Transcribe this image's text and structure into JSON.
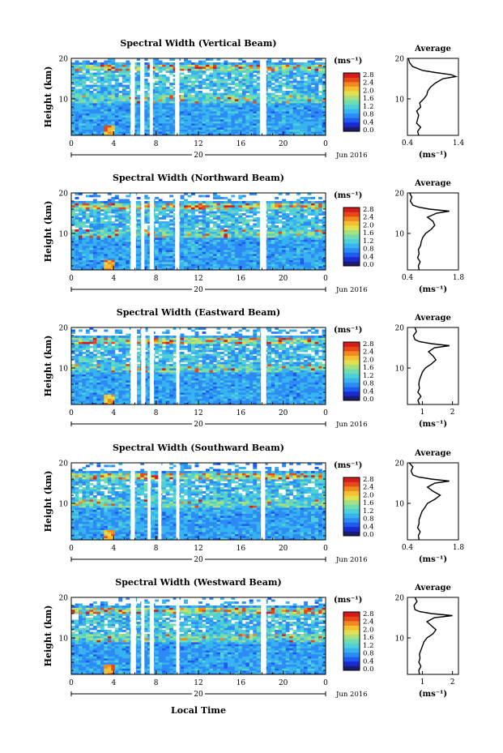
{
  "figure": {
    "xlabel": "Local Time",
    "date_label": "20",
    "month_label": "Jun 2016",
    "unit_label": "(ms⁻¹)",
    "avg_title": "Average",
    "avg_xlabel": "(ms⁻¹)",
    "ylabel": "Height (km)"
  },
  "colors": {
    "colormap": [
      "#1c1c6e",
      "#1a2ad0",
      "#1e5cf0",
      "#2d8bf5",
      "#37b4f0",
      "#4fd0d8",
      "#70dcb0",
      "#a8e080",
      "#e0e050",
      "#f5c030",
      "#f08a20",
      "#e84818",
      "#d41a1a"
    ],
    "white_gap": "#ffffff"
  },
  "chart_data": [
    {
      "type": "heatmap",
      "title": "Spectral Width (Vertical Beam)",
      "xlabel": "Local Time",
      "ylabel": "Height (km)",
      "xticks": [
        "0",
        "4",
        "8",
        "12",
        "16",
        "20",
        "0"
      ],
      "yticks": [
        "10",
        "20"
      ],
      "colorbar_ticks": [
        "0.0",
        "0.4",
        "0.8",
        "1.2",
        "1.6",
        "2.0",
        "2.4",
        "2.8"
      ],
      "gaps_hours": [
        [
          5.6,
          6.0
        ],
        [
          6.5,
          6.9
        ],
        [
          7.4,
          7.7
        ],
        [
          9.8,
          10.2
        ],
        [
          17.8,
          18.4
        ]
      ],
      "features": {
        "top_band_km": [
          17,
          18.5
        ]
      },
      "average_profile": {
        "xticks": [
          "0.4",
          "1.4"
        ],
        "xlim": [
          0.4,
          1.4
        ],
        "ylim": [
          1,
          20
        ],
        "heights": [
          1,
          2,
          3,
          4,
          5,
          6,
          7,
          8,
          9,
          10,
          11,
          12,
          13,
          14,
          15,
          15.5,
          16,
          16.5,
          17,
          18,
          19,
          20
        ],
        "values": [
          0.62,
          0.6,
          0.66,
          0.58,
          0.6,
          0.62,
          0.58,
          0.66,
          0.64,
          0.72,
          0.78,
          0.8,
          0.86,
          0.96,
          1.1,
          1.35,
          1.25,
          0.95,
          0.7,
          0.5,
          0.44,
          0.42
        ]
      }
    },
    {
      "type": "heatmap",
      "title": "Spectral Width (Northward Beam)",
      "xlabel": "Local Time",
      "ylabel": "Height (km)",
      "xticks": [
        "0",
        "4",
        "8",
        "12",
        "16",
        "20",
        "0"
      ],
      "yticks": [
        "10",
        "20"
      ],
      "colorbar_ticks": [
        "0.0",
        "0.4",
        "0.8",
        "1.2",
        "1.6",
        "2.0",
        "2.4",
        "2.8"
      ],
      "gaps_hours": [
        [
          5.6,
          6.1
        ],
        [
          6.6,
          6.9
        ],
        [
          7.4,
          7.8
        ],
        [
          9.8,
          10.2
        ],
        [
          17.8,
          18.4
        ]
      ],
      "features": {
        "top_band_km": [
          16,
          17.5
        ]
      },
      "average_profile": {
        "xticks": [
          "0.4",
          "1.8"
        ],
        "xlim": [
          0.4,
          1.8
        ],
        "ylim": [
          1,
          20
        ],
        "heights": [
          1,
          2,
          3,
          4,
          5,
          6,
          7,
          8,
          9,
          10,
          11,
          12,
          13,
          14,
          15,
          15.5,
          16,
          16.5,
          17,
          18,
          19,
          20
        ],
        "values": [
          0.72,
          0.7,
          0.75,
          0.68,
          0.72,
          0.7,
          0.76,
          0.78,
          0.82,
          0.9,
          1.05,
          1.15,
          1.1,
          0.95,
          1.2,
          1.55,
          1.0,
          0.7,
          0.55,
          0.48,
          0.52,
          0.46
        ]
      }
    },
    {
      "type": "heatmap",
      "title": "Spectral Width (Eastward Beam)",
      "xlabel": "Local Time",
      "ylabel": "Height (km)",
      "xticks": [
        "0",
        "4",
        "8",
        "12",
        "16",
        "20",
        "0"
      ],
      "yticks": [
        "10",
        "20"
      ],
      "colorbar_ticks": [
        "0.0",
        "0.4",
        "0.8",
        "1.2",
        "1.6",
        "2.0",
        "2.4",
        "2.8"
      ],
      "gaps_hours": [
        [
          5.6,
          6.2
        ],
        [
          6.6,
          7.0
        ],
        [
          7.4,
          7.8
        ],
        [
          9.9,
          10.2
        ],
        [
          17.9,
          18.4
        ]
      ],
      "features": {
        "top_band_km": [
          16,
          17.5
        ]
      },
      "average_profile": {
        "xticks": [
          "1",
          "2"
        ],
        "xlim": [
          0.5,
          2.2
        ],
        "ylim": [
          1,
          20
        ],
        "heights": [
          1,
          2,
          3,
          4,
          5,
          6,
          7,
          8,
          9,
          10,
          11,
          12,
          13,
          14,
          15,
          15.5,
          16,
          16.5,
          17,
          18,
          19,
          20
        ],
        "values": [
          0.9,
          0.85,
          0.95,
          0.85,
          0.9,
          0.88,
          0.9,
          0.95,
          1.0,
          1.1,
          1.3,
          1.45,
          1.35,
          1.2,
          1.4,
          1.9,
          1.3,
          0.9,
          0.75,
          0.7,
          0.8,
          0.75
        ]
      }
    },
    {
      "type": "heatmap",
      "title": "Spectral Width (Southward Beam)",
      "xlabel": "Local Time",
      "ylabel": "Height (km)",
      "xticks": [
        "0",
        "4",
        "8",
        "12",
        "16",
        "20",
        "0"
      ],
      "yticks": [
        "10",
        "20"
      ],
      "colorbar_ticks": [
        "0.0",
        "0.4",
        "0.8",
        "1.2",
        "1.6",
        "2.0",
        "2.4",
        "2.8"
      ],
      "gaps_hours": [
        [
          5.6,
          6.0
        ],
        [
          7.2,
          7.5
        ],
        [
          8.2,
          8.5
        ],
        [
          9.9,
          10.2
        ],
        [
          17.9,
          18.3
        ]
      ],
      "features": {
        "top_band_km": [
          16,
          17.5
        ]
      },
      "average_profile": {
        "xticks": [
          "0.4",
          "1.8"
        ],
        "xlim": [
          0.4,
          1.8
        ],
        "ylim": [
          1,
          20
        ],
        "heights": [
          1,
          2,
          3,
          4,
          5,
          6,
          7,
          8,
          9,
          10,
          11,
          12,
          13,
          14,
          15,
          15.5,
          16,
          16.5,
          17,
          18,
          19,
          20
        ],
        "values": [
          0.72,
          0.7,
          0.75,
          0.68,
          0.72,
          0.72,
          0.76,
          0.8,
          0.88,
          0.95,
          1.15,
          1.3,
          1.1,
          0.95,
          1.15,
          1.55,
          1.05,
          0.7,
          0.55,
          0.5,
          0.55,
          0.45
        ]
      }
    },
    {
      "type": "heatmap",
      "title": "Spectral Width (Westward Beam)",
      "xlabel": "Local Time",
      "ylabel": "Height (km)",
      "xticks": [
        "0",
        "4",
        "8",
        "12",
        "16",
        "20",
        "0"
      ],
      "yticks": [
        "10",
        "20"
      ],
      "colorbar_ticks": [
        "0.0",
        "0.4",
        "0.8",
        "1.2",
        "1.6",
        "2.0",
        "2.4",
        "2.8"
      ],
      "gaps_hours": [
        [
          5.6,
          6.1
        ],
        [
          6.6,
          6.9
        ],
        [
          7.4,
          7.8
        ],
        [
          9.9,
          10.2
        ],
        [
          17.9,
          18.4
        ]
      ],
      "features": {
        "top_band_km": [
          16,
          17.5
        ]
      },
      "average_profile": {
        "xticks": [
          "1",
          "2"
        ],
        "xlim": [
          0.5,
          2.2
        ],
        "ylim": [
          1,
          20
        ],
        "heights": [
          1,
          2,
          3,
          4,
          5,
          6,
          7,
          8,
          9,
          10,
          11,
          12,
          13,
          14,
          15,
          15.5,
          16,
          16.5,
          17,
          18,
          19,
          20
        ],
        "values": [
          0.9,
          0.88,
          0.95,
          0.88,
          0.92,
          0.9,
          0.95,
          1.0,
          1.05,
          1.15,
          1.35,
          1.45,
          1.3,
          1.15,
          1.4,
          2.0,
          1.3,
          0.9,
          0.75,
          0.72,
          0.82,
          0.75
        ]
      }
    }
  ]
}
